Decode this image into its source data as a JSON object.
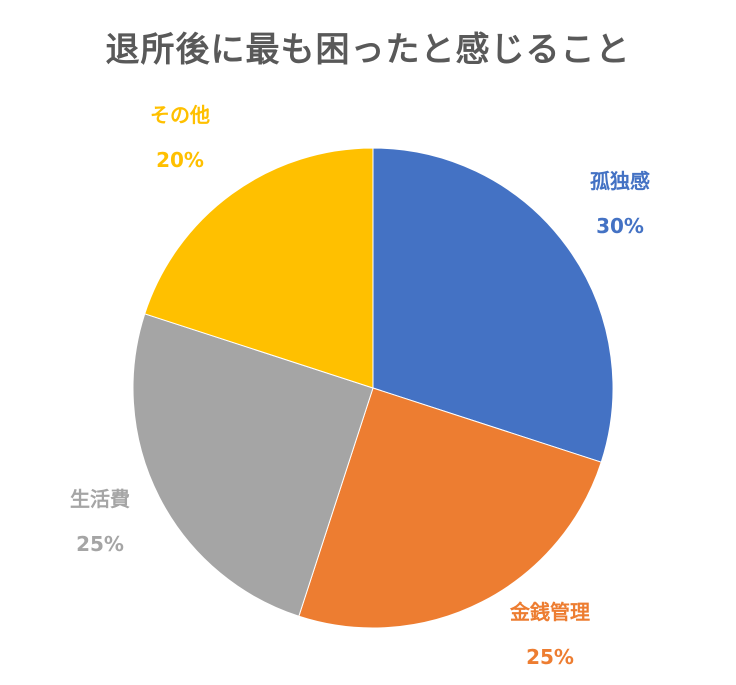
{
  "chart_data": {
    "type": "pie",
    "title": "退所後に最も困ったと感じること",
    "categories": [
      "孤独感",
      "金銭管理",
      "生活費",
      "その他"
    ],
    "values": [
      30,
      25,
      25,
      20
    ],
    "value_labels": [
      "30%",
      "25%",
      "25%",
      "20%"
    ],
    "colors": [
      "#4472C4",
      "#ED7D31",
      "#A5A5A5",
      "#FFC000"
    ],
    "legend": "none"
  }
}
